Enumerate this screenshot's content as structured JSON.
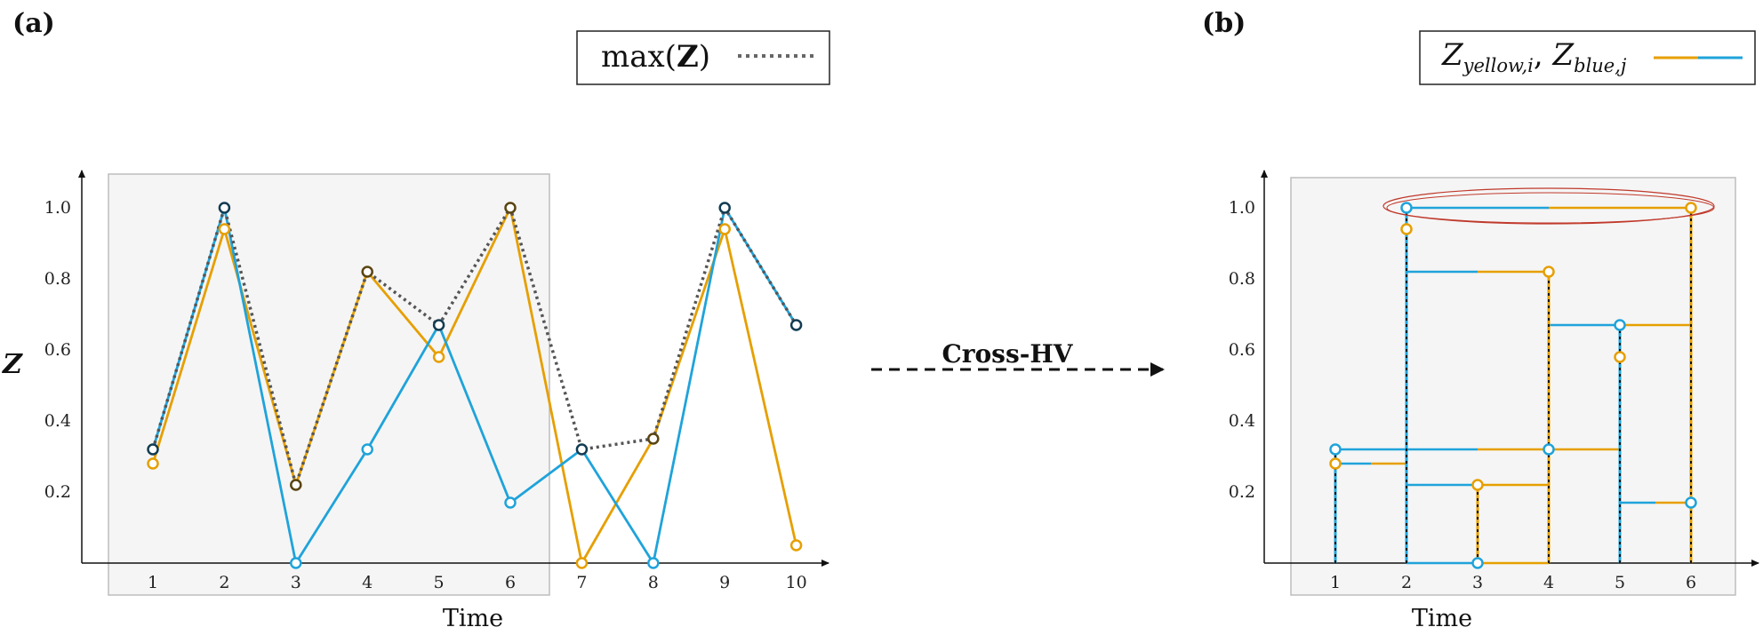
{
  "colors": {
    "yellow": "#E69F00",
    "blue": "#1FA3DA",
    "max": "#555555",
    "shade": "#F5F5F5",
    "ellipse": "#C0392B"
  },
  "panel_a": {
    "label": "(a)",
    "legend": {
      "prefix": "max(",
      "bold": "Z",
      "suffix": ")"
    },
    "ylabel": "Z",
    "xlabel": "Time"
  },
  "panel_b": {
    "label": "(b)",
    "legend": {
      "z1": "Z",
      "sub1": "yellow,i",
      "sep": ", ",
      "z2": "Z",
      "sub2": "blue,j"
    },
    "xlabel": "Time"
  },
  "arrow": {
    "label": "Cross-HV"
  },
  "chart_data": [
    {
      "type": "line",
      "x": [
        1,
        2,
        3,
        4,
        5,
        6,
        7,
        8,
        9,
        10
      ],
      "series": [
        {
          "name": "yellow",
          "values": [
            0.28,
            0.94,
            0.22,
            0.82,
            0.58,
            1.0,
            0.0,
            0.35,
            0.94,
            0.05
          ]
        },
        {
          "name": "blue",
          "values": [
            0.32,
            1.0,
            0.0,
            0.32,
            0.67,
            0.17,
            0.32,
            0.0,
            1.0,
            0.67
          ]
        },
        {
          "name": "max(Z)",
          "values": [
            0.32,
            1.0,
            0.22,
            0.82,
            0.67,
            1.0,
            0.32,
            0.35,
            1.0,
            0.67
          ]
        }
      ],
      "xlabel": "Time",
      "ylabel": "Z",
      "yticks": [
        0.2,
        0.4,
        0.6,
        0.8,
        1.0
      ],
      "ytick_labels": [
        "0.2",
        "0.4",
        "0.6",
        "0.8",
        "1.0"
      ],
      "xtick_labels": [
        "1",
        "2",
        "3",
        "4",
        "5",
        "6",
        "7",
        "8",
        "9",
        "10"
      ],
      "ylim": [
        0,
        1.1
      ],
      "shaded_x_range": [
        1,
        6
      ]
    },
    {
      "type": "line",
      "x": [
        1,
        2,
        3,
        4,
        5,
        6
      ],
      "series": [
        {
          "name": "yellow",
          "values": [
            0.28,
            0.94,
            0.22,
            0.82,
            0.58,
            1.0
          ]
        },
        {
          "name": "blue",
          "values": [
            0.32,
            1.0,
            0.0,
            0.32,
            0.67,
            0.17
          ]
        }
      ],
      "horizontal_segments": [
        {
          "y": 1.0,
          "x_from": 2,
          "x_to": 6
        },
        {
          "y": 0.82,
          "x_from": 2,
          "x_to": 4
        },
        {
          "y": 0.67,
          "x_from": 4,
          "x_to": 6
        },
        {
          "y": 0.32,
          "x_from": 1,
          "x_to": 5
        },
        {
          "y": 0.28,
          "x_from": 1,
          "x_to": 2
        },
        {
          "y": 0.22,
          "x_from": 2,
          "x_to": 4
        },
        {
          "y": 0.17,
          "x_from": 5,
          "x_to": 6
        },
        {
          "y": 0.0,
          "x_from": 2,
          "x_to": 4
        }
      ],
      "vertical_lines_x": [
        1,
        2,
        3,
        4,
        5,
        6
      ],
      "highlighted_y": 1.0,
      "xlabel": "Time",
      "yticks": [
        0.2,
        0.4,
        0.6,
        0.8,
        1.0
      ],
      "ytick_labels": [
        "0.2",
        "0.4",
        "0.6",
        "0.8",
        "1.0"
      ],
      "xtick_labels": [
        "1",
        "2",
        "3",
        "4",
        "5",
        "6"
      ],
      "ylim": [
        0,
        1.1
      ]
    }
  ]
}
